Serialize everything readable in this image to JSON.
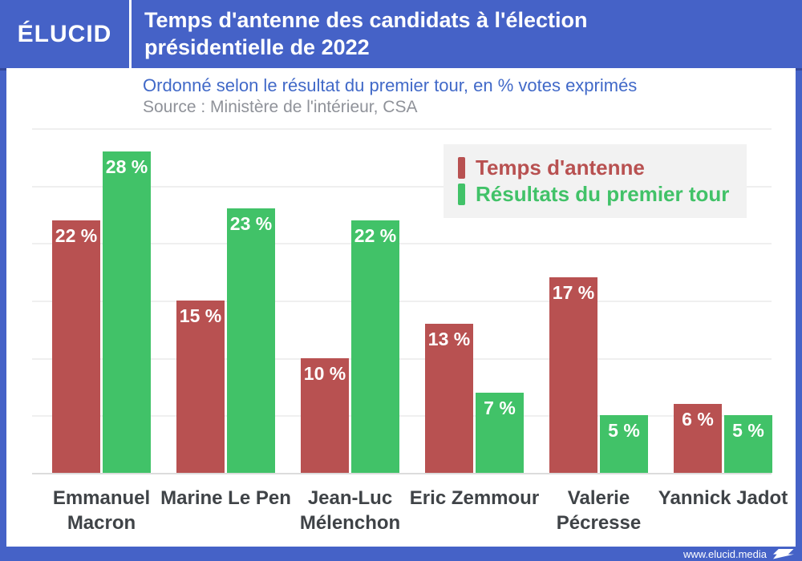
{
  "header": {
    "logo": "ÉLUCID",
    "title": "Temps d'antenne des candidats à l'élection présidentielle de 2022"
  },
  "subtitle": "Ordonné selon le résultat du premier tour, en % votes exprimés",
  "source": "Source : Ministère de l'intérieur, CSA",
  "legend": {
    "items": [
      {
        "label": "Temps d'antenne",
        "color": "#b85151"
      },
      {
        "label": "Résultats du premier tour",
        "color": "#41c268"
      }
    ]
  },
  "footer": {
    "url": "www.elucid.media"
  },
  "colors": {
    "brand_blue": "#4562c7",
    "airtime_red": "#b85151",
    "first_round_green": "#41c268",
    "subtitle_blue": "#4169c8",
    "source_gray": "#8f9299"
  },
  "chart_data": {
    "type": "bar",
    "title": "Temps d'antenne des candidats à l'élection présidentielle de 2022",
    "subtitle": "Ordonné selon le résultat du premier tour, en % votes exprimés",
    "source": "Source : Ministère de l'intérieur, CSA",
    "categories": [
      "Emmanuel Macron",
      "Marine Le Pen",
      "Jean-Luc Mélenchon",
      "Eric Zemmour",
      "Valerie Pécresse",
      "Yannick Jadot"
    ],
    "series": [
      {
        "name": "Temps d'antenne",
        "color": "#b85151",
        "values": [
          22,
          15,
          10,
          13,
          17,
          6
        ]
      },
      {
        "name": "Résultats du premier tour",
        "color": "#41c268",
        "values": [
          28,
          23,
          22,
          7,
          5,
          5
        ]
      }
    ],
    "value_suffix": " %",
    "xlabel": "",
    "ylabel": "",
    "ylim": [
      0,
      31
    ],
    "gridlines_every": 5,
    "grid": true,
    "legend_position": "top-right",
    "value_labels": "inside-top"
  }
}
